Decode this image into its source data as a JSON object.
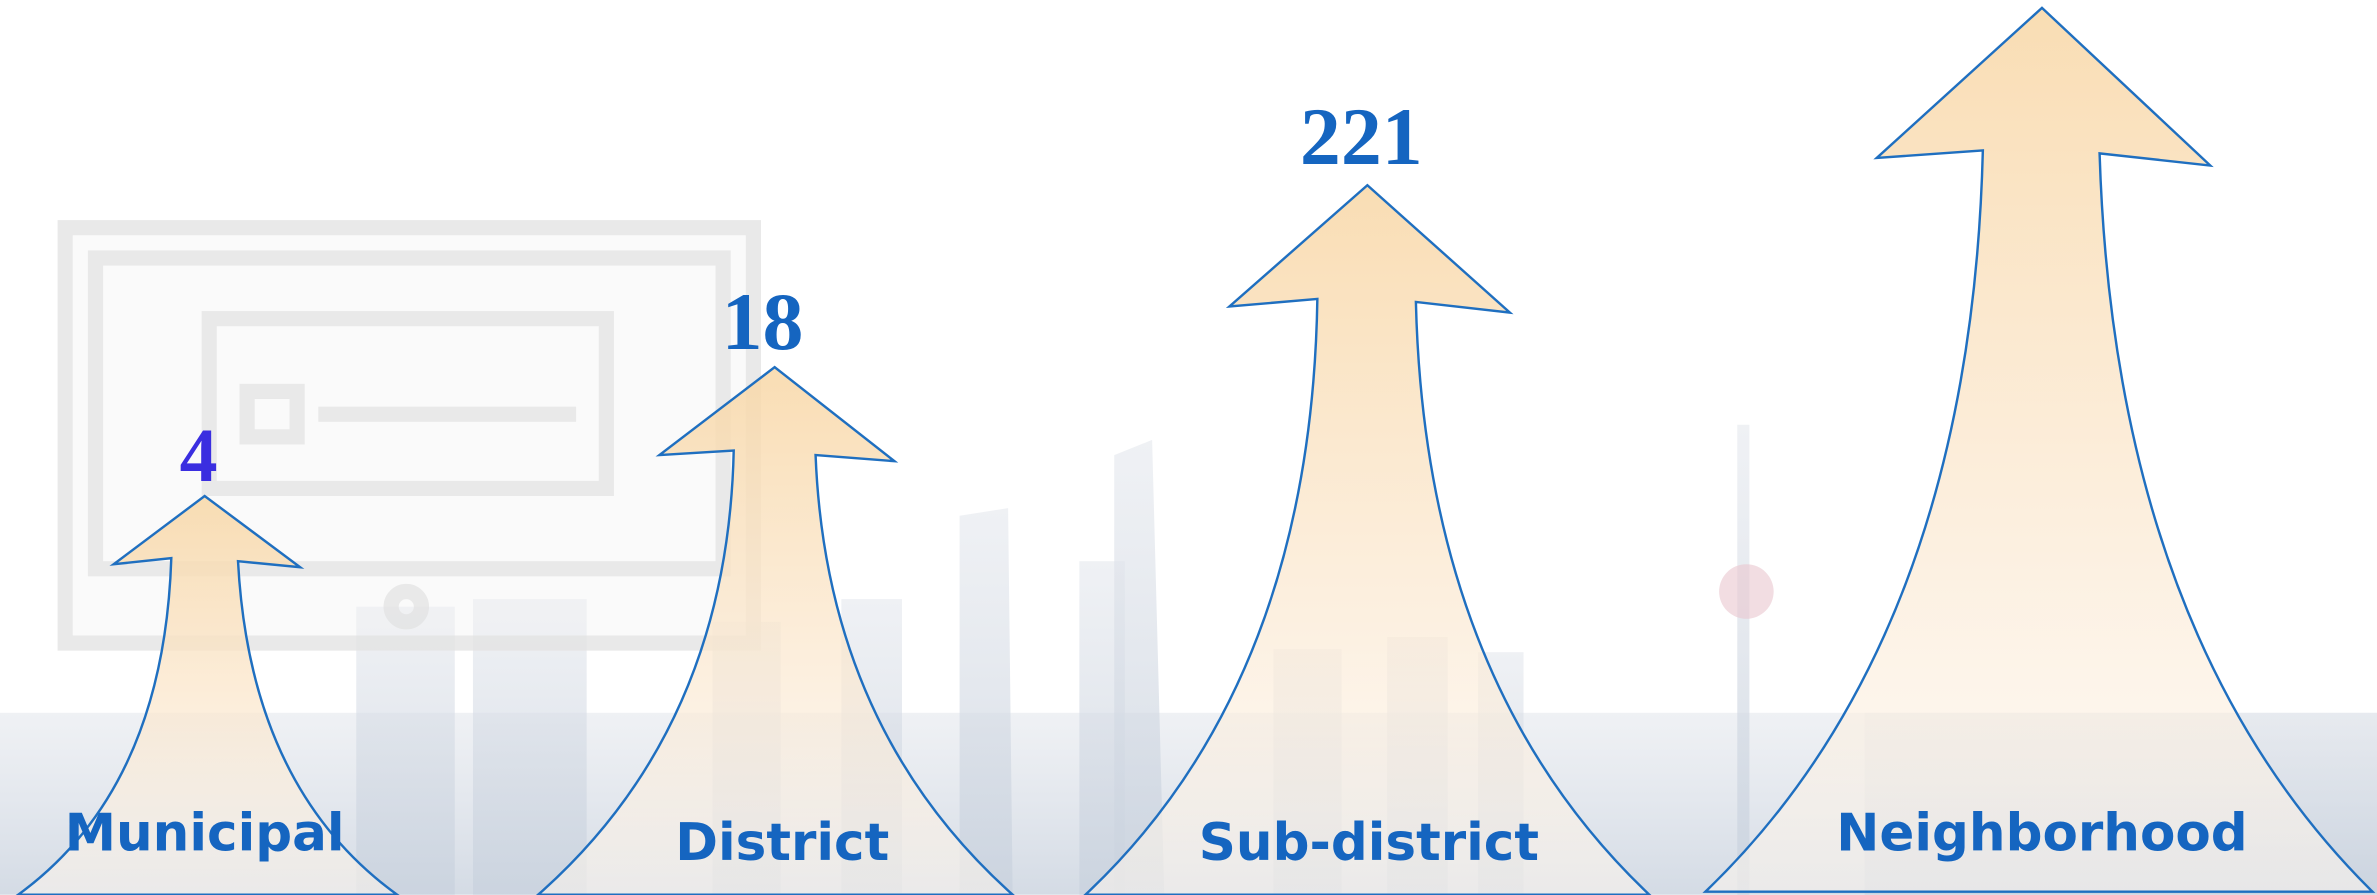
{
  "levels": [
    {
      "label": "Municipal",
      "count": 4
    },
    {
      "label": "District",
      "count": 18
    },
    {
      "label": "Sub-district",
      "count": 221
    },
    {
      "label": "Neighborhood"
    }
  ]
}
